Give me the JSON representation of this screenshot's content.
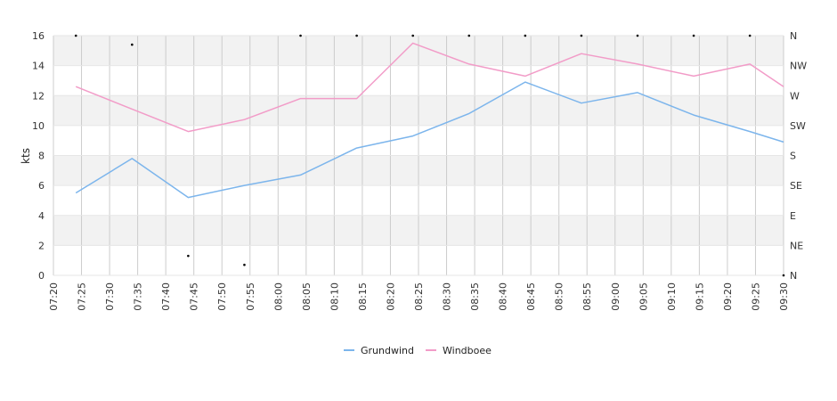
{
  "chart_data": {
    "type": "line",
    "ylabel": "kts",
    "ylim": [
      0,
      16
    ],
    "yticks": [
      0,
      2,
      4,
      6,
      8,
      10,
      12,
      14,
      16
    ],
    "direction_ticks": [
      "N",
      "NE",
      "E",
      "SE",
      "S",
      "SW",
      "W",
      "NW",
      "N"
    ],
    "x_tick_labels": [
      "07:20",
      "07:25",
      "07:30",
      "07:35",
      "07:40",
      "07:45",
      "07:50",
      "07:55",
      "08:00",
      "08:05",
      "08:10",
      "08:15",
      "08:20",
      "08:25",
      "08:30",
      "08:35",
      "08:40",
      "08:45",
      "08:50",
      "08:55",
      "09:00",
      "09:05",
      "09:10",
      "09:15",
      "09:20",
      "09:25",
      "09:30"
    ],
    "x": [
      "07:24",
      "07:34",
      "07:44",
      "07:54",
      "08:04",
      "08:14",
      "08:24",
      "08:34",
      "08:44",
      "08:54",
      "09:04",
      "09:14",
      "09:24",
      "09:30"
    ],
    "series": [
      {
        "name": "Grundwind",
        "color": "#7cb5ec",
        "values": [
          5.5,
          7.8,
          5.2,
          6.0,
          6.7,
          8.5,
          9.3,
          10.8,
          12.9,
          11.5,
          12.2,
          10.7,
          9.6,
          8.9
        ]
      },
      {
        "name": "Windboee",
        "color": "#f29cc8",
        "values": [
          12.6,
          11.1,
          9.6,
          10.4,
          11.8,
          11.8,
          15.5,
          14.1,
          13.3,
          14.8,
          14.1,
          13.3,
          14.1,
          12.6
        ]
      }
    ],
    "direction_points": {
      "x": [
        "07:24",
        "07:34",
        "07:44",
        "07:54",
        "08:04",
        "08:14",
        "08:24",
        "08:34",
        "08:44",
        "08:54",
        "09:04",
        "09:14",
        "09:24",
        "09:30"
      ],
      "values": [
        16,
        15.4,
        1.3,
        0.7,
        16,
        16,
        16,
        16,
        16,
        16,
        16,
        16,
        16,
        0
      ]
    },
    "grid": true,
    "legend_position": "bottom-center"
  }
}
